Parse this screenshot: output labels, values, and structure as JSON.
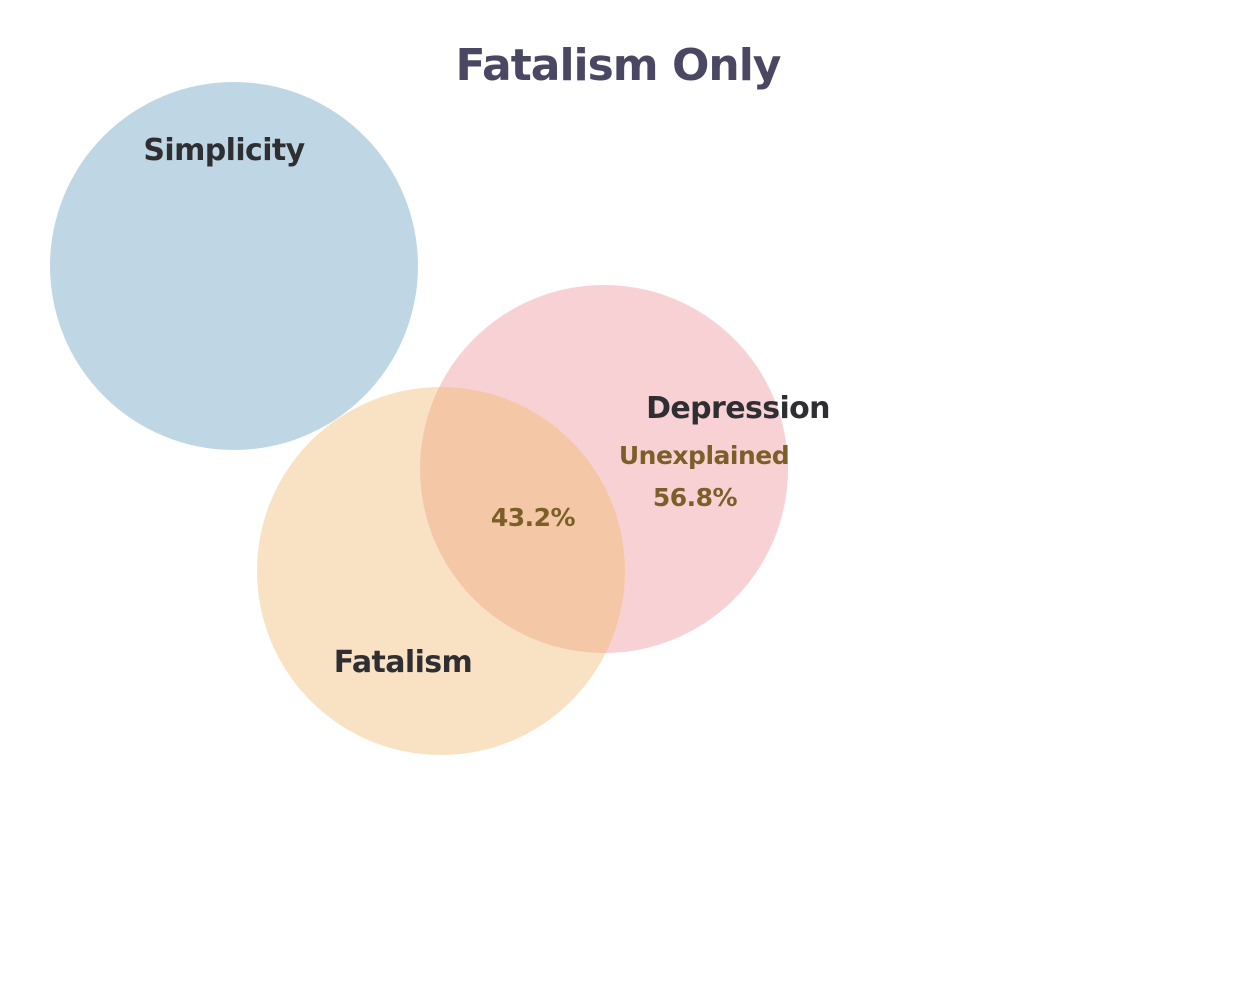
{
  "title": "Fatalism Only",
  "sets": [
    {
      "id": "simplicity",
      "label": "Simplicity",
      "color": "#bfd6e5"
    },
    {
      "id": "depression",
      "label": "Depression",
      "color": "#f8d1d4"
    },
    {
      "id": "fatalism",
      "label": "Fatalism",
      "color": "#f9e2c3"
    }
  ],
  "overlap": {
    "sets": [
      "depression",
      "fatalism"
    ],
    "color": "#f4c7a7",
    "value_label": "43.2%"
  },
  "unexplained": {
    "label": "Unexplained",
    "value_label": "56.8%"
  },
  "colors": {
    "title": "#4a4763",
    "set_label": "#2f2f33",
    "region_label": "#7c5f28",
    "background": "#ffffff"
  }
}
